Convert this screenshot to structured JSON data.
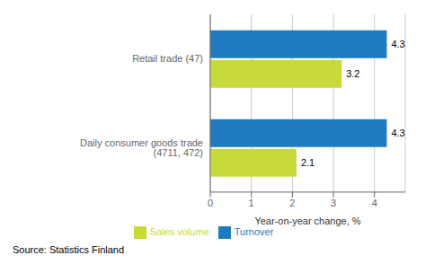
{
  "chart_data": {
    "type": "bar",
    "orientation": "horizontal",
    "categories": [
      "Daily consumer goods trade (4711, 472)",
      "Retail trade (47)"
    ],
    "series": [
      {
        "name": "Turnover",
        "color": "#1f7bbf",
        "values": [
          4.3,
          4.3
        ]
      },
      {
        "name": "Sales volume",
        "color": "#c8d93a",
        "values": [
          2.1,
          3.2
        ]
      }
    ],
    "xlabel": "Year-on-year change, %",
    "xlim": [
      0,
      4.75
    ],
    "xticks": [
      0,
      1,
      2,
      3,
      4
    ],
    "grid": true,
    "legend": "bottom",
    "data_labels": true,
    "annotations": [
      "Source: Statistics Finland"
    ]
  }
}
